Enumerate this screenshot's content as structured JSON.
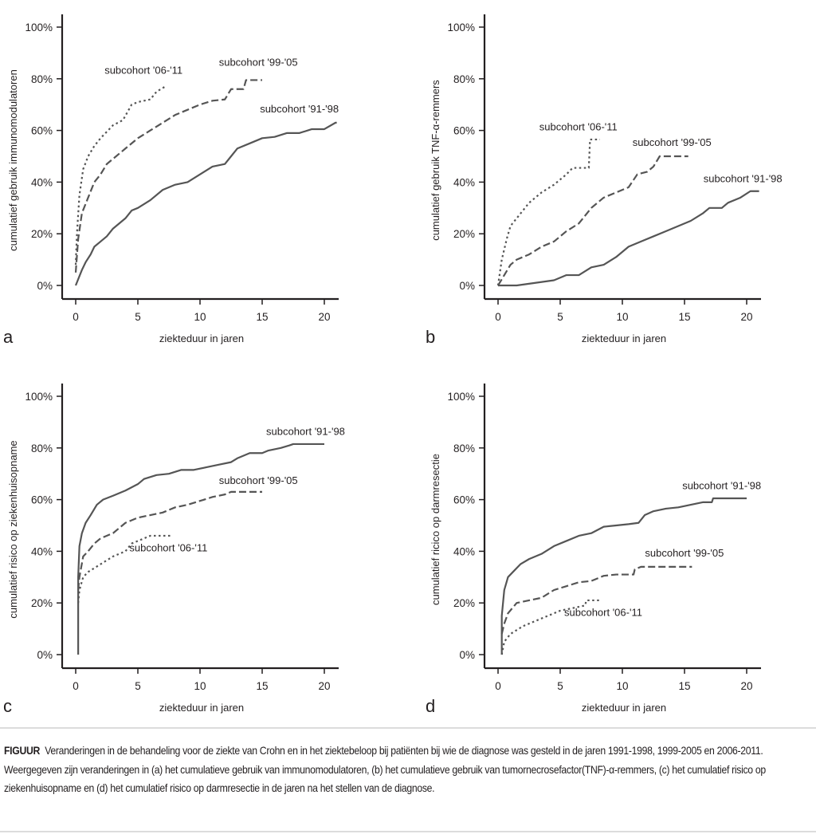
{
  "figure_caption": {
    "label": "FIGUUR",
    "text": "Veranderingen in de behandeling voor de ziekte van Crohn en in het ziektebeloop bij patiënten bij wie de diagnose was gesteld in de jaren 1991-1998, 1999-2005 en 2006-2011. Weergegeven zijn veranderingen in (a) het cumulatieve gebruik van immunomodulatoren, (b) het cumulatieve gebruik van tumornecrosefactor(TNF)-α-remmers, (c) het cumulatief risico op ziekenhuisopname en (d) het cumulatief risico op darmresectie in de jaren na het stellen van de diagnose."
  },
  "colors": {
    "axis": "#231f20",
    "line": "#555555"
  },
  "chart_data": [
    {
      "panel": "a",
      "type": "line",
      "title": "",
      "xlabel": "ziekteduur in jaren",
      "ylabel": "cumulatief gebruik immunomodulatoren",
      "xlim": [
        0,
        21
      ],
      "ylim": [
        0,
        100
      ],
      "xticks": [
        0,
        5,
        10,
        15,
        20
      ],
      "yticks": [
        "0%",
        "20%",
        "40%",
        "60%",
        "80%",
        "100%"
      ],
      "grid": false,
      "series": [
        {
          "name": "subcohort '91-'98",
          "style": "solid",
          "x": [
            0,
            0.5,
            0.8,
            1.2,
            1.5,
            2,
            2.5,
            3,
            3.5,
            4,
            4.5,
            5,
            6,
            7,
            8,
            9,
            10,
            11,
            12,
            12.5,
            13,
            14,
            15,
            16,
            17,
            18,
            19,
            20,
            20.9,
            21
          ],
          "y": [
            0,
            6,
            9,
            12,
            15,
            17,
            19,
            22,
            24,
            26,
            29,
            30,
            33,
            37,
            39,
            40,
            43,
            46,
            47,
            50,
            53,
            55,
            57,
            57.5,
            59,
            59,
            60.5,
            60.5,
            63,
            63
          ]
        },
        {
          "name": "subcohort '99-'05",
          "style": "dashed",
          "x": [
            0,
            0.2,
            0.5,
            1,
            1.5,
            2,
            2.5,
            3,
            4,
            5,
            6,
            7,
            8,
            9,
            10,
            11,
            12,
            12.5,
            13.5,
            13.7,
            15
          ],
          "y": [
            5,
            18,
            28,
            34,
            40,
            43,
            47,
            49,
            53,
            57,
            60,
            63,
            66,
            68,
            70,
            71.5,
            72,
            76,
            76,
            79.5,
            79.5
          ]
        },
        {
          "name": "subcohort '06-'11",
          "style": "dotted",
          "x": [
            0,
            0.1,
            0.3,
            0.6,
            1,
            1.5,
            2,
            3,
            3.8,
            4.5,
            5,
            6,
            6.5,
            7.2
          ],
          "y": [
            8,
            20,
            35,
            45,
            50,
            54,
            57,
            62,
            64,
            70,
            71,
            72,
            75,
            77
          ]
        }
      ],
      "annotations": [
        {
          "text": "subcohort '06-'11",
          "x": 4.5,
          "y": 82
        },
        {
          "text": "subcohort '99-'05",
          "x": 13.7,
          "y": 85
        },
        {
          "text": "subcohort '91-'98",
          "x": 17,
          "y": 67
        }
      ]
    },
    {
      "panel": "b",
      "type": "line",
      "title": "",
      "xlabel": "ziekteduur in jaren",
      "ylabel": "cumulatief gebruik TNF-α-remmers",
      "xlim": [
        0,
        21
      ],
      "ylim": [
        0,
        100
      ],
      "xticks": [
        0,
        5,
        10,
        15,
        20
      ],
      "yticks": [
        "0%",
        "20%",
        "40%",
        "60%",
        "80%",
        "100%"
      ],
      "grid": false,
      "series": [
        {
          "name": "subcohort '91-'98",
          "style": "solid",
          "x": [
            0,
            1.5,
            3,
            4.5,
            5.5,
            6.5,
            7.5,
            8.5,
            9.5,
            10.5,
            11.5,
            12.5,
            13.5,
            14.5,
            15.5,
            16.5,
            17,
            18,
            18.5,
            19.5,
            20.3,
            21
          ],
          "y": [
            0,
            0,
            1,
            2,
            4,
            4,
            7,
            8,
            11,
            15,
            17,
            19,
            21,
            23,
            25,
            28,
            30,
            30,
            32,
            34,
            36.5,
            36.5
          ]
        },
        {
          "name": "subcohort '99-'05",
          "style": "dashed",
          "x": [
            0,
            0.5,
            1,
            1.5,
            2.5,
            3.5,
            4.5,
            5.5,
            6.5,
            7.5,
            8.5,
            9.5,
            10.5,
            11.2,
            12,
            12.5,
            13,
            15.3
          ],
          "y": [
            0,
            4,
            8,
            10,
            12,
            15,
            17,
            21,
            24,
            30,
            34,
            36,
            38,
            43,
            44,
            46,
            50,
            50
          ]
        },
        {
          "name": "subcohort '06-'11",
          "style": "dotted",
          "x": [
            0,
            0.3,
            0.7,
            1,
            1.5,
            2.5,
            3.5,
            4.5,
            5.5,
            6,
            7.3,
            7.4,
            8.2
          ],
          "y": [
            0,
            10,
            18,
            23,
            26,
            32,
            36,
            39,
            43,
            45.5,
            45.5,
            56.5,
            56.5
          ]
        }
      ],
      "annotations": [
        {
          "text": "subcohort '06-'11",
          "x": 5.5,
          "y": 60
        },
        {
          "text": "subcohort '99-'05",
          "x": 13,
          "y": 54
        },
        {
          "text": "subcohort '91-'98",
          "x": 18.7,
          "y": 40
        }
      ]
    },
    {
      "panel": "c",
      "type": "line",
      "title": "",
      "xlabel": "ziekteduur in jaren",
      "ylabel": "cumulatief risico op ziekenhuisopname",
      "xlim": [
        0,
        21
      ],
      "ylim": [
        0,
        100
      ],
      "xticks": [
        0,
        5,
        10,
        15,
        20
      ],
      "yticks": [
        "0%",
        "20%",
        "40%",
        "60%",
        "80%",
        "100%"
      ],
      "grid": false,
      "series": [
        {
          "name": "subcohort '91-'98",
          "style": "solid",
          "x": [
            0.2,
            0.2,
            0.3,
            0.5,
            0.8,
            1.2,
            1.7,
            2.2,
            3,
            4,
            5,
            5.5,
            6.5,
            7.5,
            8.5,
            9.5,
            10.5,
            11.5,
            12.5,
            13,
            14,
            15,
            15.5,
            16.5,
            17.2,
            17.5,
            20
          ],
          "y": [
            0,
            30,
            42,
            47,
            51,
            54,
            58,
            60,
            61.5,
            63.5,
            66,
            68,
            69.5,
            70,
            71.5,
            71.5,
            72.5,
            73.5,
            74.5,
            76,
            78,
            78,
            79,
            80,
            81,
            81.5,
            81.5
          ]
        },
        {
          "name": "subcohort '99-'05",
          "style": "dashed",
          "x": [
            0.2,
            0.3,
            0.6,
            1,
            1.5,
            2,
            3,
            4,
            5,
            6,
            7,
            8,
            9,
            10,
            11,
            12,
            12.5,
            15
          ],
          "y": [
            25,
            30,
            38,
            40,
            43,
            45,
            47,
            51,
            53,
            54,
            55,
            57,
            58,
            59.5,
            61,
            62,
            63,
            63
          ]
        },
        {
          "name": "subcohort '06-'11",
          "style": "dotted",
          "x": [
            0.2,
            0.3,
            0.6,
            1,
            2,
            3,
            4,
            4.5,
            5,
            6,
            7.6
          ],
          "y": [
            20,
            25,
            30,
            32,
            35,
            38,
            40,
            43,
            44,
            46,
            46
          ]
        }
      ],
      "annotations": [
        {
          "text": "subcohort '91-'98",
          "x": 17.5,
          "y": 85
        },
        {
          "text": "subcohort '99-'05",
          "x": 13.7,
          "y": 66
        },
        {
          "text": "subcohort '06-'11",
          "x": 6.5,
          "y": 40
        }
      ]
    },
    {
      "panel": "d",
      "type": "line",
      "title": "",
      "xlabel": "ziekteduur in jaren",
      "ylabel": "cumulatief ricico op darmresectie",
      "xlim": [
        0,
        21
      ],
      "ylim": [
        0,
        100
      ],
      "xticks": [
        0,
        5,
        10,
        15,
        20
      ],
      "yticks": [
        "0%",
        "20%",
        "40%",
        "60%",
        "80%",
        "100%"
      ],
      "grid": false,
      "series": [
        {
          "name": "subcohort '91-'98",
          "style": "solid",
          "x": [
            0.3,
            0.3,
            0.5,
            0.8,
            1.2,
            1.8,
            2.5,
            3.5,
            4.5,
            5.5,
            6.5,
            7.5,
            8.5,
            9.5,
            10.5,
            11.3,
            11.8,
            12.5,
            13.5,
            14.5,
            15.5,
            16.5,
            17.2,
            17.3,
            20
          ],
          "y": [
            0,
            15,
            25,
            30,
            32,
            35,
            37,
            39,
            42,
            44,
            46,
            47,
            49.5,
            50,
            50.5,
            51,
            54,
            55.5,
            56.5,
            57,
            58,
            59,
            59,
            60.5,
            60.5
          ]
        },
        {
          "name": "subcohort '99-'05",
          "style": "dashed",
          "x": [
            0.3,
            0.5,
            0.8,
            1.5,
            2.5,
            3.5,
            4.5,
            5.5,
            6.5,
            7.5,
            8.5,
            9.5,
            10.9,
            11,
            11.5,
            15.6
          ],
          "y": [
            8,
            12,
            16,
            20,
            21,
            22,
            25,
            26.5,
            28,
            28.5,
            30.5,
            31,
            31,
            33,
            34,
            34
          ]
        },
        {
          "name": "subcohort '06-'11",
          "style": "dotted",
          "x": [
            0.3,
            0.5,
            1,
            2,
            3,
            4,
            5,
            6,
            7,
            7.1,
            8.3
          ],
          "y": [
            0,
            5,
            8,
            11,
            13,
            15,
            17,
            18,
            19,
            21,
            21
          ]
        }
      ],
      "annotations": [
        {
          "text": "subcohort '91-'98",
          "x": 17,
          "y": 64
        },
        {
          "text": "subcohort '99-'05",
          "x": 14,
          "y": 38
        },
        {
          "text": "subcohort '06-'11",
          "x": 7.5,
          "y": 15
        }
      ]
    }
  ]
}
